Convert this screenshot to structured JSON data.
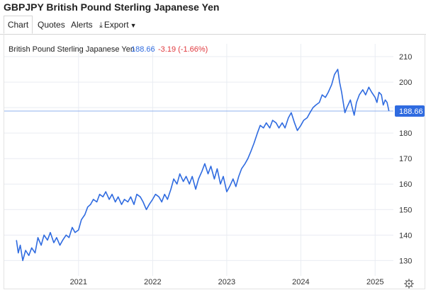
{
  "page": {
    "title": "GBPJPY British Pound Sterling Japanese Yen"
  },
  "tabs": [
    {
      "label": "Chart",
      "active": true
    },
    {
      "label": "Quotes"
    },
    {
      "label": "Alerts"
    },
    {
      "label": "Export",
      "icon": "download-icon",
      "caret": "dropdown-caret-icon"
    }
  ],
  "legend": {
    "name": "British Pound Sterling Japanese Yen",
    "last": "188.66",
    "change": "-3.19 (-1.66%)"
  },
  "colors": {
    "line": "#2f6be0",
    "last_value": "#2f6be0",
    "negative": "#e0393e",
    "grid": "#e9ecf2",
    "price_line": "#8fb0ec"
  },
  "chart_data": {
    "type": "line",
    "title": "",
    "xlabel": "",
    "ylabel": "",
    "grid": true,
    "y_axis_side": "right",
    "ylim": [
      124,
      215
    ],
    "xlim": [
      "2020-01-01",
      "2025-04-01"
    ],
    "y_ticks": [
      130,
      140,
      150,
      160,
      170,
      180,
      190,
      200,
      210
    ],
    "y_tick_labels": [
      "130",
      "140",
      "150",
      "160",
      "170",
      "180",
      "",
      "200",
      "210"
    ],
    "x_ticks": [
      "2021-01-01",
      "2022-01-01",
      "2023-01-01",
      "2024-01-01",
      "2025-01-01"
    ],
    "x_tick_labels": [
      "2021",
      "2022",
      "2023",
      "2024",
      "2025"
    ],
    "last_value": 188.66,
    "last_value_label": "188.66",
    "series": [
      {
        "x": [
          "2020-03-01",
          "2020-03-10",
          "2020-03-20",
          "2020-04-01",
          "2020-04-15",
          "2020-05-01",
          "2020-05-15",
          "2020-06-01",
          "2020-06-15",
          "2020-07-01",
          "2020-07-15",
          "2020-08-01",
          "2020-08-15",
          "2020-09-01",
          "2020-09-15",
          "2020-10-01",
          "2020-10-15",
          "2020-11-01",
          "2020-11-15",
          "2020-12-01",
          "2020-12-15",
          "2021-01-01",
          "2021-01-15",
          "2021-02-01",
          "2021-02-15",
          "2021-03-01",
          "2021-03-15",
          "2021-04-01",
          "2021-04-15",
          "2021-05-01",
          "2021-05-15",
          "2021-06-01",
          "2021-06-15",
          "2021-07-01",
          "2021-07-15",
          "2021-08-01",
          "2021-08-15",
          "2021-09-01",
          "2021-09-15",
          "2021-10-01",
          "2021-10-15",
          "2021-11-01",
          "2021-11-15",
          "2021-12-01",
          "2021-12-15",
          "2022-01-01",
          "2022-01-15",
          "2022-02-01",
          "2022-02-15",
          "2022-03-01",
          "2022-03-15",
          "2022-04-01",
          "2022-04-15",
          "2022-05-01",
          "2022-05-15",
          "2022-06-01",
          "2022-06-15",
          "2022-07-01",
          "2022-07-15",
          "2022-08-01",
          "2022-08-15",
          "2022-09-01",
          "2022-09-15",
          "2022-10-01",
          "2022-10-15",
          "2022-11-01",
          "2022-11-15",
          "2022-12-01",
          "2022-12-15",
          "2023-01-01",
          "2023-01-15",
          "2023-02-01",
          "2023-02-15",
          "2023-03-01",
          "2023-03-15",
          "2023-04-01",
          "2023-04-15",
          "2023-05-01",
          "2023-05-15",
          "2023-06-01",
          "2023-06-15",
          "2023-07-01",
          "2023-07-15",
          "2023-08-01",
          "2023-08-15",
          "2023-09-01",
          "2023-09-15",
          "2023-10-01",
          "2023-10-15",
          "2023-11-01",
          "2023-11-15",
          "2023-12-01",
          "2023-12-15",
          "2024-01-01",
          "2024-01-15",
          "2024-02-01",
          "2024-02-15",
          "2024-03-01",
          "2024-03-15",
          "2024-04-01",
          "2024-04-15",
          "2024-05-01",
          "2024-05-15",
          "2024-06-01",
          "2024-06-15",
          "2024-07-01",
          "2024-07-10",
          "2024-07-20",
          "2024-08-01",
          "2024-08-05",
          "2024-08-15",
          "2024-09-01",
          "2024-09-10",
          "2024-09-20",
          "2024-10-01",
          "2024-10-15",
          "2024-11-01",
          "2024-11-15",
          "2024-12-01",
          "2024-12-15",
          "2025-01-01",
          "2025-01-10",
          "2025-01-20",
          "2025-02-01",
          "2025-02-10",
          "2025-02-20",
          "2025-03-01",
          "2025-03-10"
        ],
        "values": [
          138,
          133,
          136,
          130,
          134,
          132,
          135,
          133,
          139,
          136,
          140,
          138,
          141,
          137,
          139,
          136,
          138,
          140,
          139,
          143,
          141,
          142,
          146,
          148,
          151,
          152,
          154,
          153,
          156,
          155,
          157,
          154,
          156,
          153,
          155,
          152,
          154,
          153,
          155,
          152,
          156,
          155,
          153,
          150,
          152,
          154,
          156,
          155,
          153,
          156,
          154,
          158,
          162,
          160,
          164,
          161,
          163,
          160,
          163,
          158,
          162,
          165,
          168,
          164,
          167,
          162,
          166,
          160,
          163,
          157,
          159,
          162,
          159,
          163,
          166,
          168,
          170,
          173,
          176,
          180,
          183,
          182,
          184,
          182,
          185,
          184,
          182,
          184,
          182,
          186,
          188,
          184,
          181,
          183,
          185,
          186,
          188,
          190,
          191,
          192,
          195,
          194,
          196,
          199,
          203,
          205,
          200,
          196,
          190,
          188,
          190,
          193,
          190,
          187,
          192,
          195,
          197,
          195,
          198,
          196,
          194,
          192,
          196,
          195,
          191,
          193,
          192,
          188.66
        ]
      }
    ]
  }
}
